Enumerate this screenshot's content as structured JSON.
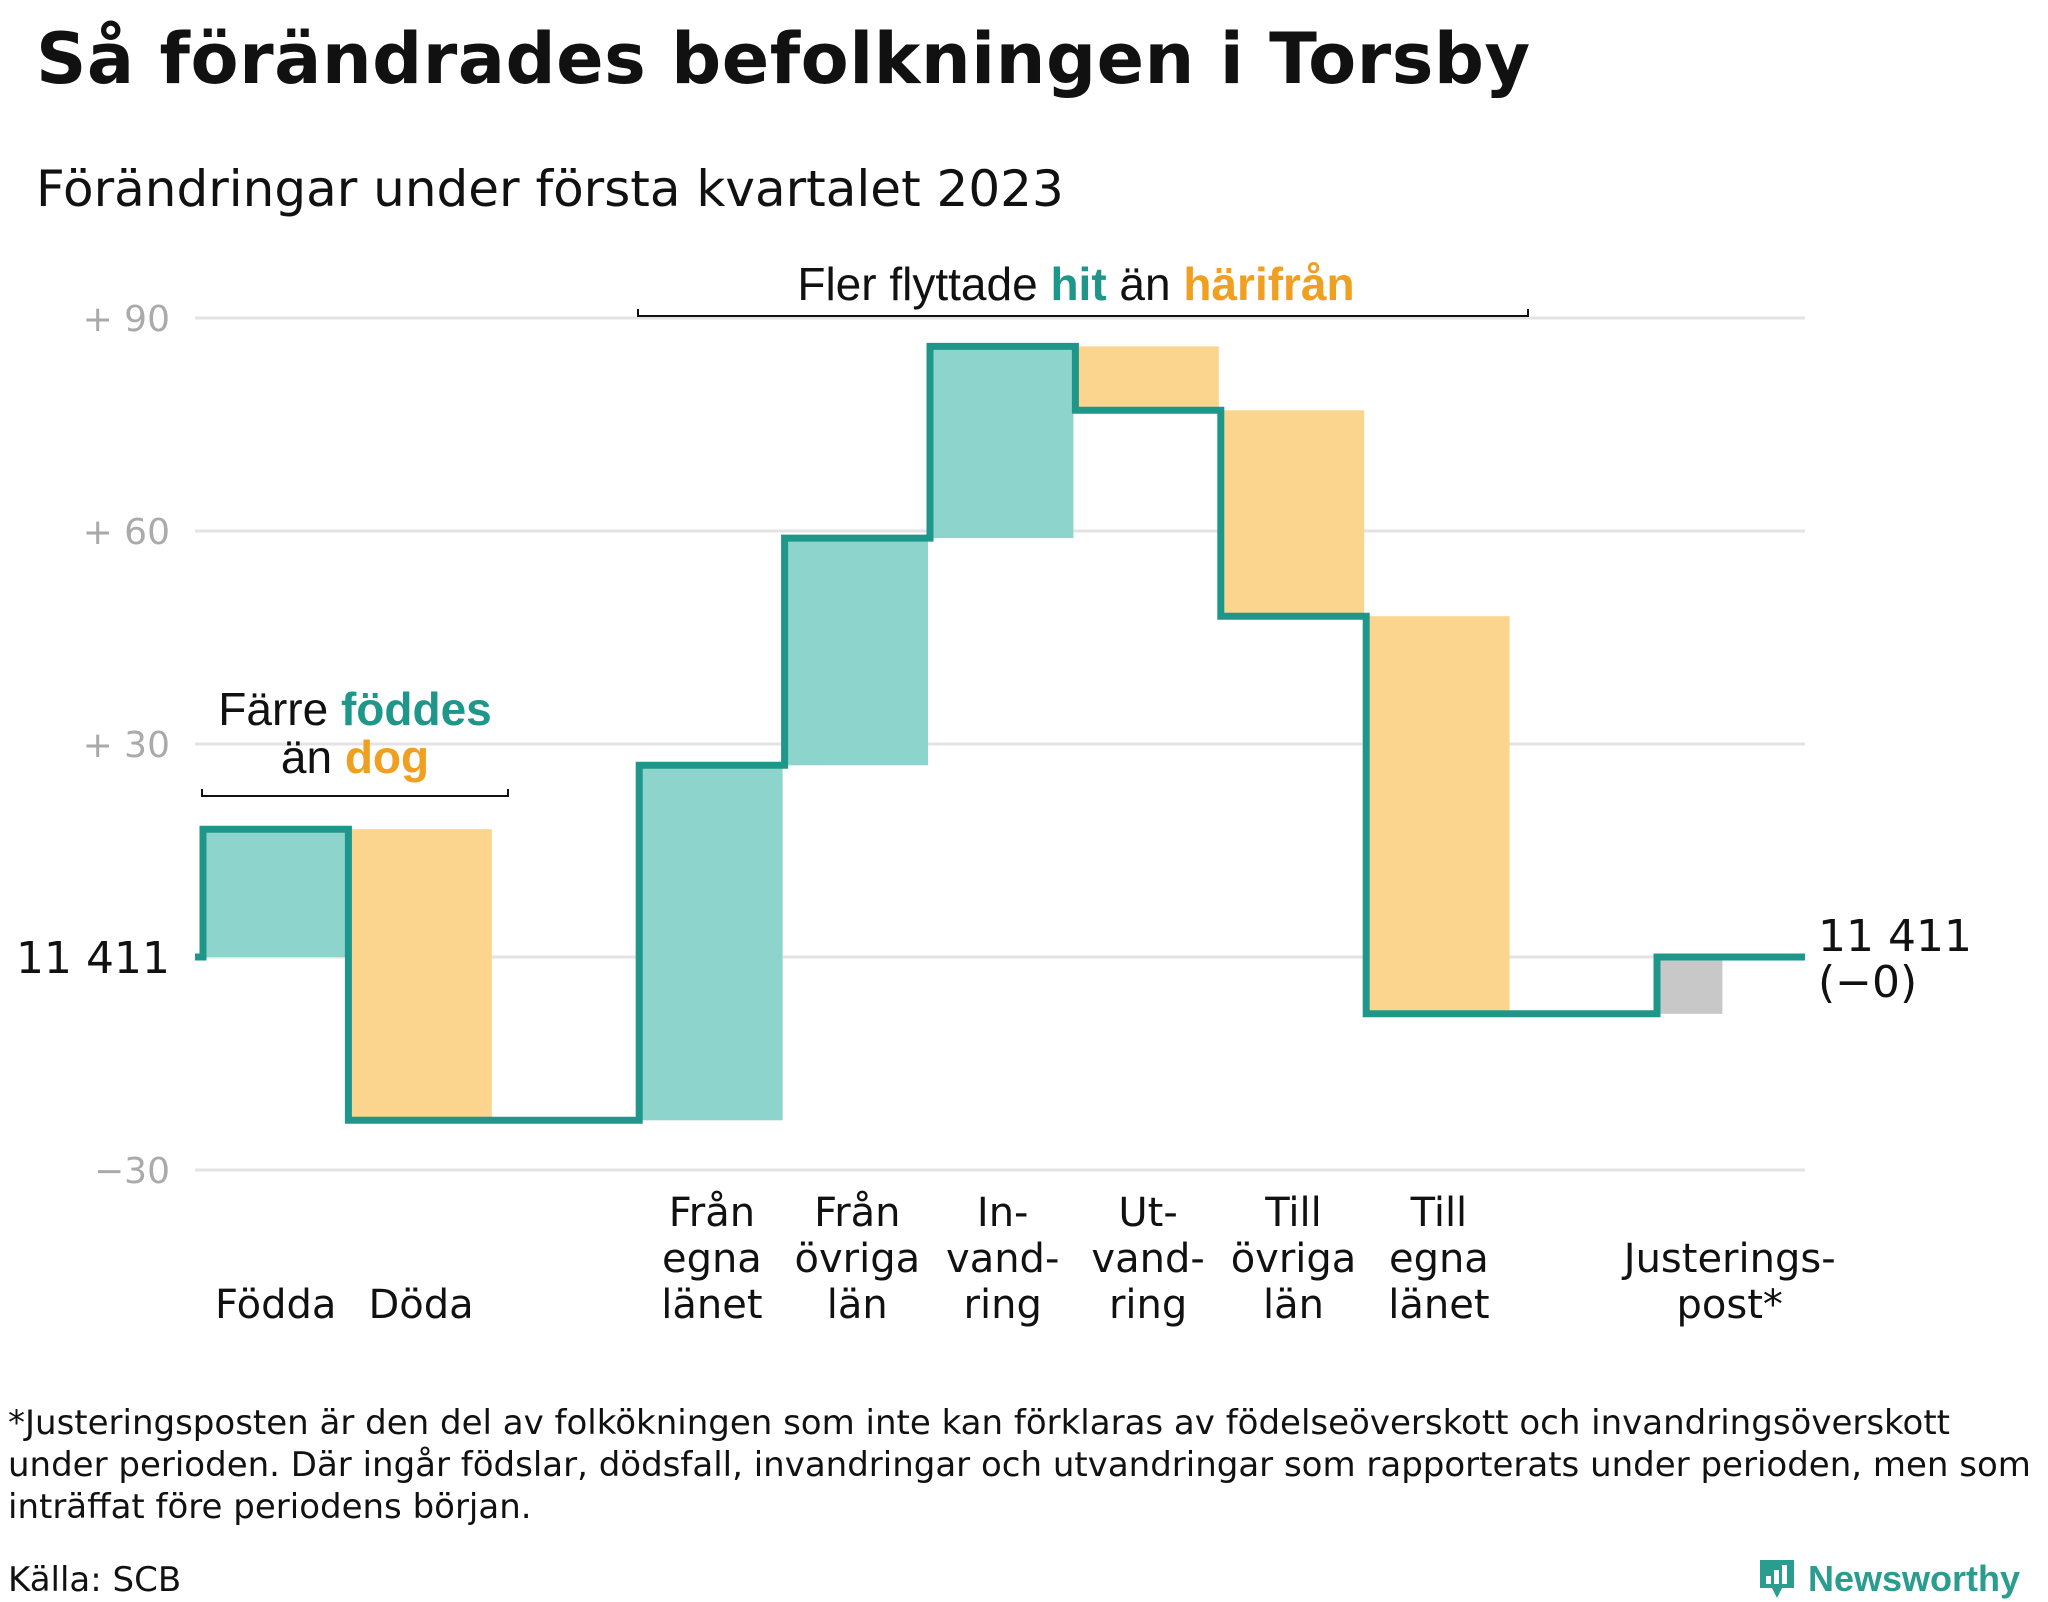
{
  "title": "Så förändrades befolkningen i Torsby",
  "subtitle": "Förändringar under första kvartalet 2023",
  "colors": {
    "increase": "#8dd5cc",
    "decrease": "#fbd58d",
    "adjustment": "#c8c8c8",
    "line": "#1f968a",
    "teal_text": "#1f968a",
    "orange_text": "#f0a020",
    "grid": "#e3e3e3",
    "tick_text": "#aaaaaa"
  },
  "chart_data": {
    "type": "waterfall",
    "baseline_label": "11 411",
    "y_ticks": [
      {
        "value": 90,
        "label": "+ 90"
      },
      {
        "value": 60,
        "label": "+ 60"
      },
      {
        "value": 30,
        "label": "+ 30"
      },
      {
        "value": 0,
        "label": "11 411"
      },
      {
        "value": -30,
        "label": "−30"
      }
    ],
    "ylim": [
      -30,
      90
    ],
    "steps": [
      {
        "label_lines": [
          "Födda"
        ],
        "delta": 18,
        "kind": "increase"
      },
      {
        "label_lines": [
          "Döda"
        ],
        "delta": -41,
        "kind": "decrease"
      },
      {
        "label_lines": [],
        "delta": 0,
        "kind": "spacer"
      },
      {
        "label_lines": [
          "Från",
          "egna",
          "länet"
        ],
        "delta": 50,
        "kind": "increase"
      },
      {
        "label_lines": [
          "Från",
          "övriga",
          "län"
        ],
        "delta": 32,
        "kind": "increase"
      },
      {
        "label_lines": [
          "In-",
          "vand-",
          "ring"
        ],
        "delta": 27,
        "kind": "increase"
      },
      {
        "label_lines": [
          "Ut-",
          "vand-",
          "ring"
        ],
        "delta": -9,
        "kind": "decrease"
      },
      {
        "label_lines": [
          "Till",
          "övriga",
          "län"
        ],
        "delta": -29,
        "kind": "decrease"
      },
      {
        "label_lines": [
          "Till",
          "egna",
          "länet"
        ],
        "delta": -56,
        "kind": "decrease"
      },
      {
        "label_lines": [],
        "delta": 0,
        "kind": "spacer"
      },
      {
        "label_lines": [
          "Justerings-",
          "post*"
        ],
        "delta": 8,
        "kind": "adjustment"
      }
    ],
    "end_label_lines": [
      "11 411",
      "(−0)"
    ]
  },
  "annotations": {
    "births": {
      "line1_prefix": "Färre ",
      "line1_teal": "föddes",
      "line2_prefix": "än ",
      "line2_orange": "dog"
    },
    "migration": {
      "prefix": "Fler flyttade ",
      "teal": "hit",
      "middle": " än ",
      "orange": "härifrån"
    }
  },
  "footnote": "*Justeringsposten är den del av folkökningen som inte kan förklaras av födelseöverskott och invandringsöverskott under perioden. Där ingår födslar, dödsfall, invandringar och utvandringar som rapporterats under perioden, men som inträffat före periodens början.",
  "source": "Källa: SCB",
  "brand": {
    "name": "Newsworthy",
    "icon": "newsworthy-logo-icon"
  }
}
